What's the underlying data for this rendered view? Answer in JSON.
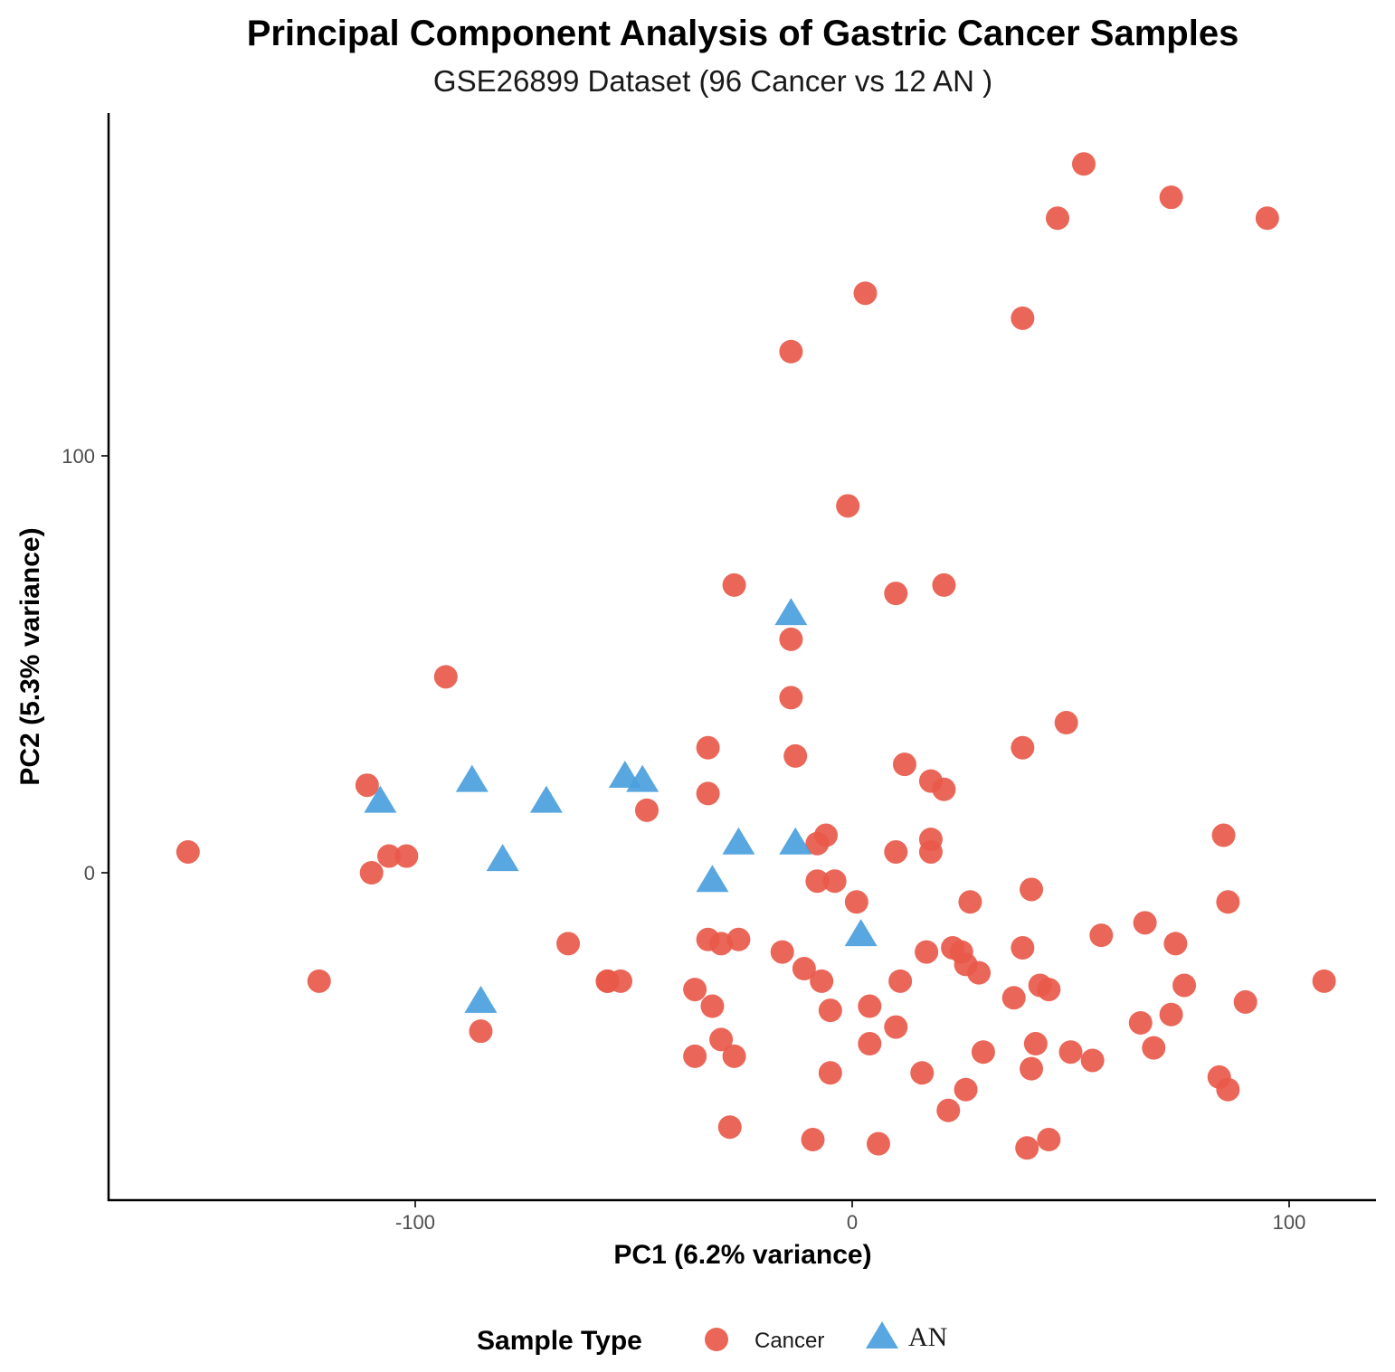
{
  "chart_data": {
    "type": "scatter",
    "title": "Principal Component Analysis of Gastric Cancer Samples",
    "subtitle": "GSE26899 Dataset (96 Cancer vs 12 AN )",
    "xlabel": "PC1 (6.2% variance)",
    "ylabel": "PC2 (5.3% variance)",
    "xlim": [
      -170,
      120
    ],
    "ylim": [
      -78,
      182
    ],
    "xticks": [
      -100,
      0,
      100
    ],
    "xtick_labels": [
      "-100",
      "0",
      "100"
    ],
    "yticks": [
      0,
      100
    ],
    "ytick_labels": [
      "0",
      "100"
    ],
    "grid": false,
    "legend": {
      "title": "Sample Type",
      "placement": "bottom",
      "entries": [
        {
          "label": "Cancer",
          "shape": "circle",
          "color": "#E8594A"
        },
        {
          "label": "AN",
          "shape": "triangle",
          "color": "#4A9FDD"
        }
      ]
    },
    "series": [
      {
        "name": "Cancer",
        "shape": "circle",
        "color": "#E8594A",
        "x": [
          53,
          73,
          47,
          95,
          3,
          39,
          -14,
          -1,
          -27,
          10,
          21,
          -14,
          -93,
          -14,
          49,
          -33,
          39,
          -13,
          12,
          -111,
          18,
          21,
          -33,
          -47,
          -6,
          -53,
          -8,
          10,
          18,
          85,
          -152,
          -110,
          -106,
          -102,
          18,
          -4,
          -8,
          41,
          1,
          27,
          86,
          -33,
          -65,
          -30,
          -26,
          -16,
          25,
          17,
          57,
          67,
          39,
          74,
          -56,
          -56,
          -11,
          -7,
          -36,
          -32,
          29,
          11,
          37,
          45,
          43,
          76,
          108,
          90,
          4,
          -5,
          73,
          -122,
          66,
          -85,
          10,
          42,
          4,
          30,
          69,
          -30,
          50,
          55,
          41,
          -36,
          -5,
          16,
          84,
          26,
          86,
          22,
          -28,
          -9,
          6,
          40,
          45,
          23,
          26,
          -27
        ],
        "y": [
          170,
          162,
          157,
          157,
          139,
          133,
          125,
          88,
          69,
          67,
          69,
          56,
          47,
          42,
          36,
          30,
          30,
          28,
          26,
          21,
          22,
          20,
          19,
          15,
          9,
          -26,
          7,
          5,
          8,
          9,
          5,
          0,
          4,
          4,
          5,
          -2,
          -2,
          -4,
          -7,
          -7,
          -7,
          -16,
          -17,
          -17,
          -16,
          -19,
          -19,
          -19,
          -15,
          -12,
          -18,
          -17,
          -26,
          -26,
          -23,
          -26,
          -28,
          -32,
          -24,
          -26,
          -30,
          -28,
          -27,
          -27,
          -26,
          -31,
          -32,
          -33,
          -34,
          -26,
          -36,
          -38,
          -37,
          -41,
          -41,
          -43,
          -42,
          -40,
          -43,
          -45,
          -47,
          -44,
          -48,
          -48,
          -49,
          -52,
          -52,
          -57,
          -61,
          -64,
          -65,
          -66,
          -64,
          -18,
          -22,
          -44
        ]
      },
      {
        "name": "AN",
        "shape": "triangle",
        "color": "#4A9FDD",
        "x": [
          -14,
          -52,
          -48,
          -87,
          -70,
          -108,
          -80,
          -26,
          -13,
          -32,
          2,
          -85
        ],
        "y": [
          62,
          23,
          22,
          22,
          17,
          17,
          3,
          7,
          7,
          -2,
          -15,
          -31
        ]
      }
    ]
  }
}
